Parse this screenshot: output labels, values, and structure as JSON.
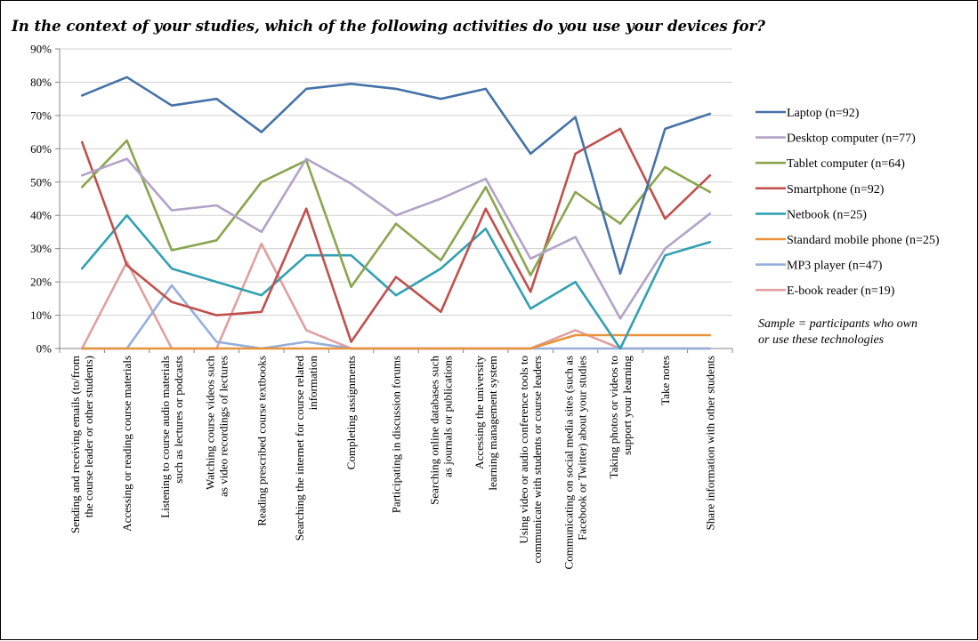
{
  "chart_data": {
    "type": "line",
    "title": "In the context of your studies, which of the following activities do you use your devices for?",
    "ylim": [
      0,
      90
    ],
    "yticks": [
      0,
      10,
      20,
      30,
      40,
      50,
      60,
      70,
      80,
      90
    ],
    "ytick_suffix": "%",
    "grid": "horizontal",
    "legend_position": "right",
    "categories": [
      [
        "Sending and receiving emails (to/from",
        "the course leader or other students)"
      ],
      [
        "Accessing or reading course materials"
      ],
      [
        "Listening to course audio materials",
        "such as lectures or podcasts"
      ],
      [
        "Watching course videos such",
        "as video recordings of lectures"
      ],
      [
        "Reading prescribed course textbooks"
      ],
      [
        "Searching the internet for course related",
        "information"
      ],
      [
        "Completing  assignments"
      ],
      [
        "Participating in discussion forums"
      ],
      [
        "Searching online databases such",
        "as journals or publications"
      ],
      [
        "Accessing the university",
        "learning management  system"
      ],
      [
        "Using video or audio conference tools to",
        "communicate with students or course leaders"
      ],
      [
        "Communicating on social media sites (such as",
        "Facebook or Twitter)  about your studies"
      ],
      [
        "Taking photos or videos to",
        "support your learning"
      ],
      [
        "Take notes"
      ],
      [
        "Share information with other students"
      ]
    ],
    "series": [
      {
        "name": "Laptop (n=92)",
        "color": "#4572a7",
        "values": [
          76,
          81.5,
          73,
          75,
          65,
          78,
          79.5,
          78,
          75,
          78,
          58.5,
          69.5,
          22.5,
          66,
          70.5
        ]
      },
      {
        "name": "Desktop computer (n=77)",
        "color": "#b3a2c7",
        "values": [
          52,
          57,
          41.5,
          43,
          35,
          57,
          49.5,
          40,
          45,
          51,
          27,
          33.5,
          9,
          30,
          40.5
        ]
      },
      {
        "name": "Tablet computer (n=64)",
        "color": "#89a54e",
        "values": [
          48.5,
          62.5,
          29.5,
          32.5,
          50,
          56.5,
          18.5,
          37.5,
          26.5,
          48.5,
          22,
          47,
          37.5,
          54.5,
          47
        ]
      },
      {
        "name": "Smartphone (n=92)",
        "color": "#c0504d",
        "values": [
          62,
          25,
          14,
          10,
          11,
          42,
          2,
          21.5,
          11,
          42,
          17,
          58.5,
          66,
          39,
          52
        ]
      },
      {
        "name": "Netbook (n=25)",
        "color": "#31a0b2",
        "values": [
          24,
          40,
          24,
          20,
          16,
          28,
          28,
          16,
          24,
          36,
          12,
          20,
          0,
          28,
          32
        ]
      },
      {
        "name": "Standard mobile phone (n=25)",
        "color": "#e8923a",
        "values": [
          0,
          0,
          0,
          0,
          0,
          0,
          0,
          0,
          0,
          0,
          0,
          4,
          4,
          4,
          4
        ]
      },
      {
        "name": "MP3 player (n=47)",
        "color": "#95aedb",
        "values": [
          0,
          0,
          19,
          2,
          0,
          2,
          0,
          0,
          0,
          0,
          0,
          0,
          0,
          0,
          0
        ]
      },
      {
        "name": "E-book reader (n=19)",
        "color": "#e0a0a0",
        "values": [
          0,
          26,
          0,
          0,
          31.5,
          5.5,
          0,
          0,
          0,
          0,
          0,
          5.5,
          0,
          0,
          0
        ]
      }
    ],
    "annotation": [
      "Sample = participants who own",
      "or use these technologies"
    ]
  }
}
